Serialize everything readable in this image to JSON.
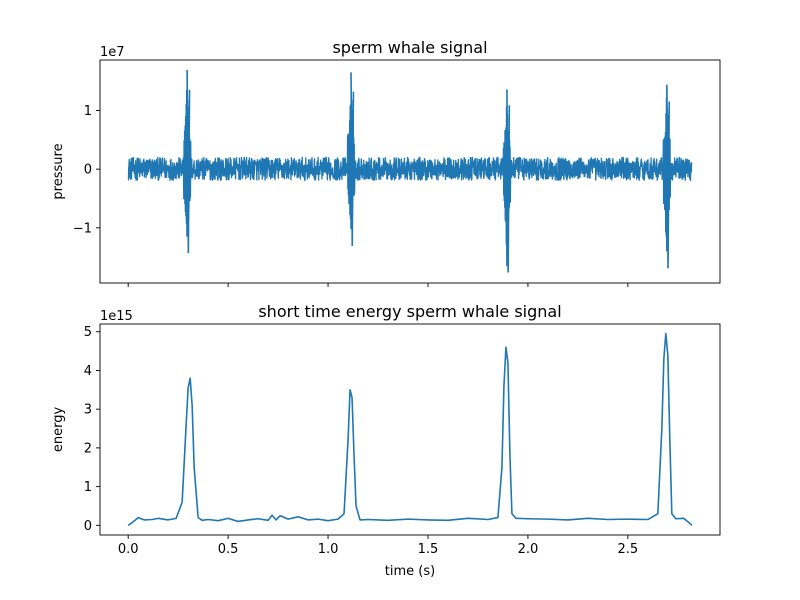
{
  "chart_data": [
    {
      "type": "line",
      "title": "sperm whale signal",
      "xlabel": "",
      "ylabel": "pressure",
      "offset_text": "1e7",
      "scale": 10000000,
      "xlim": [
        -0.141,
        2.961
      ],
      "ylim": [
        -1.94,
        1.86
      ],
      "xticks": [
        0.0,
        0.5,
        1.0,
        1.5,
        2.0,
        2.5
      ],
      "show_xtick_labels": false,
      "yticks": [
        -1,
        0,
        1
      ],
      "ytick_labels": [
        "−1",
        "0",
        "1"
      ],
      "grid": false,
      "color": "#1f77b4",
      "signal": {
        "t_start": 0.0,
        "t_end": 2.82,
        "baseline": 0.0,
        "noise_band": [
          -0.19,
          0.2
        ],
        "clicks": [
          {
            "t": 0.295,
            "max": 1.69,
            "min": -1.43
          },
          {
            "t": 1.115,
            "max": 1.65,
            "min": -1.31
          },
          {
            "t": 1.895,
            "max": 1.36,
            "min": -1.76
          },
          {
            "t": 2.695,
            "max": 1.44,
            "min": -1.69
          }
        ]
      }
    },
    {
      "type": "line",
      "title": "short time energy sperm whale signal",
      "xlabel": "time (s)",
      "ylabel": "energy",
      "offset_text": "1e15",
      "scale": 1000000000000000,
      "xlim": [
        -0.141,
        2.961
      ],
      "ylim": [
        -0.25,
        5.2
      ],
      "xticks": [
        0.0,
        0.5,
        1.0,
        1.5,
        2.0,
        2.5
      ],
      "xtick_labels": [
        "0.0",
        "0.5",
        "1.0",
        "1.5",
        "2.0",
        "2.5"
      ],
      "yticks": [
        0,
        1,
        2,
        3,
        4,
        5
      ],
      "ytick_labels": [
        "0",
        "1",
        "2",
        "3",
        "4",
        "5"
      ],
      "grid": false,
      "color": "#1f77b4",
      "series": [
        {
          "x": [
            0.0,
            0.02,
            0.05,
            0.08,
            0.12,
            0.15,
            0.2,
            0.24,
            0.27,
            0.29,
            0.3,
            0.31,
            0.32,
            0.33,
            0.35,
            0.37,
            0.4,
            0.45,
            0.5,
            0.55,
            0.6,
            0.65,
            0.7,
            0.72,
            0.74,
            0.76,
            0.8,
            0.85,
            0.9,
            0.95,
            1.0,
            1.05,
            1.08,
            1.1,
            1.11,
            1.12,
            1.13,
            1.14,
            1.16,
            1.2,
            1.3,
            1.4,
            1.5,
            1.6,
            1.7,
            1.8,
            1.85,
            1.87,
            1.88,
            1.89,
            1.9,
            1.91,
            1.92,
            1.94,
            2.0,
            2.1,
            2.2,
            2.3,
            2.4,
            2.5,
            2.6,
            2.65,
            2.67,
            2.68,
            2.69,
            2.7,
            2.71,
            2.72,
            2.74,
            2.78,
            2.81,
            2.82
          ],
          "y": [
            0.0,
            0.07,
            0.2,
            0.14,
            0.15,
            0.18,
            0.14,
            0.18,
            0.6,
            2.6,
            3.55,
            3.8,
            3.1,
            1.5,
            0.2,
            0.13,
            0.15,
            0.12,
            0.18,
            0.1,
            0.14,
            0.17,
            0.13,
            0.26,
            0.14,
            0.25,
            0.16,
            0.22,
            0.14,
            0.16,
            0.12,
            0.16,
            0.3,
            2.2,
            3.5,
            3.3,
            1.8,
            0.5,
            0.14,
            0.15,
            0.13,
            0.16,
            0.14,
            0.13,
            0.18,
            0.15,
            0.2,
            1.5,
            3.6,
            4.6,
            4.2,
            1.8,
            0.3,
            0.18,
            0.17,
            0.16,
            0.14,
            0.18,
            0.15,
            0.16,
            0.15,
            0.3,
            2.5,
            4.3,
            4.95,
            4.4,
            2.2,
            0.3,
            0.17,
            0.18,
            0.05,
            0.0
          ]
        }
      ]
    }
  ]
}
